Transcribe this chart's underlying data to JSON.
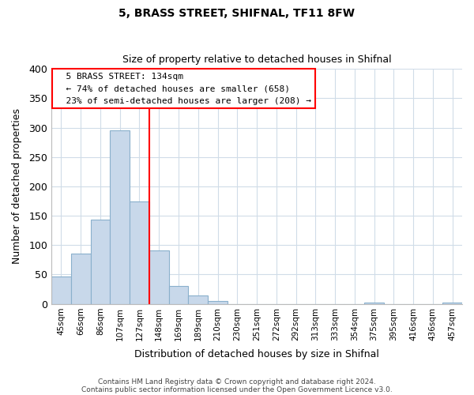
{
  "title": "5, BRASS STREET, SHIFNAL, TF11 8FW",
  "subtitle": "Size of property relative to detached houses in Shifnal",
  "xlabel": "Distribution of detached houses by size in Shifnal",
  "ylabel": "Number of detached properties",
  "bin_labels": [
    "45sqm",
    "66sqm",
    "86sqm",
    "107sqm",
    "127sqm",
    "148sqm",
    "169sqm",
    "189sqm",
    "210sqm",
    "230sqm",
    "251sqm",
    "272sqm",
    "292sqm",
    "313sqm",
    "333sqm",
    "354sqm",
    "375sqm",
    "395sqm",
    "416sqm",
    "436sqm",
    "457sqm"
  ],
  "bar_values": [
    47,
    86,
    144,
    295,
    175,
    91,
    30,
    14,
    5,
    0,
    0,
    0,
    0,
    0,
    0,
    0,
    2,
    0,
    0,
    0,
    2
  ],
  "bar_color": "#c8d8ea",
  "bar_edge_color": "#8ab0cc",
  "vline_position": 4.5,
  "vline_color": "red",
  "ylim": [
    0,
    400
  ],
  "yticks": [
    0,
    50,
    100,
    150,
    200,
    250,
    300,
    350,
    400
  ],
  "annotation_title": "5 BRASS STREET: 134sqm",
  "annotation_line1": "← 74% of detached houses are smaller (658)",
  "annotation_line2": "23% of semi-detached houses are larger (208) →",
  "annotation_box_color": "white",
  "annotation_box_edge": "red",
  "footer_line1": "Contains HM Land Registry data © Crown copyright and database right 2024.",
  "footer_line2": "Contains public sector information licensed under the Open Government Licence v3.0.",
  "background_color": "white",
  "grid_color": "#d0dce8",
  "title_fontsize": 10,
  "subtitle_fontsize": 9
}
